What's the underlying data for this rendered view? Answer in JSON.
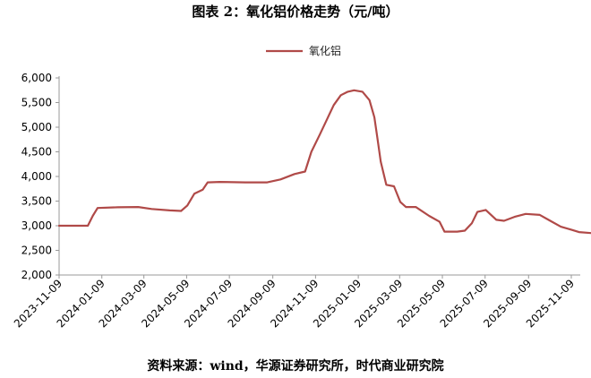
{
  "title": "图表 2：氧化铝价格走势（元/吨）",
  "source": "资料来源：wind，华源证券研究所，时代商业研究院",
  "chart_data": {
    "type": "line",
    "title": "图表 2：氧化铝价格走势（元/吨）",
    "xlabel": "",
    "ylabel": "",
    "ylim": [
      2000,
      6000
    ],
    "yticks": [
      "2,000",
      "2,500",
      "3,000",
      "3,500",
      "4,000",
      "4,500",
      "5,000",
      "5,500",
      "6,000"
    ],
    "xticks": [
      "2023-11-09",
      "2024-01-09",
      "2024-03-09",
      "2024-05-09",
      "2024-07-09",
      "2024-09-09",
      "2024-11-09",
      "2025-01-09",
      "2025-03-09",
      "2025-05-09",
      "2025-07-09",
      "2025-09-09",
      "2025-11-09"
    ],
    "xlim": [
      "2023-11-09",
      "2025-11-09"
    ],
    "grid": false,
    "legend_position": "top-center",
    "colors": {
      "series": "#b04a48",
      "axis": "#999999"
    },
    "series": [
      {
        "name": "氧化铝",
        "points": [
          [
            "2023-11-09",
            3000
          ],
          [
            "2023-12-20",
            3000
          ],
          [
            "2023-12-27",
            3200
          ],
          [
            "2024-01-03",
            3360
          ],
          [
            "2024-02-01",
            3375
          ],
          [
            "2024-03-01",
            3380
          ],
          [
            "2024-03-20",
            3340
          ],
          [
            "2024-04-15",
            3310
          ],
          [
            "2024-05-01",
            3300
          ],
          [
            "2024-05-10",
            3410
          ],
          [
            "2024-05-20",
            3650
          ],
          [
            "2024-06-01",
            3730
          ],
          [
            "2024-06-08",
            3880
          ],
          [
            "2024-06-25",
            3890
          ],
          [
            "2024-08-01",
            3880
          ],
          [
            "2024-09-01",
            3880
          ],
          [
            "2024-09-20",
            3940
          ],
          [
            "2024-10-10",
            4050
          ],
          [
            "2024-10-25",
            4100
          ],
          [
            "2024-11-03",
            4500
          ],
          [
            "2024-11-15",
            4850
          ],
          [
            "2024-11-25",
            5150
          ],
          [
            "2024-12-05",
            5450
          ],
          [
            "2024-12-15",
            5650
          ],
          [
            "2024-12-25",
            5720
          ],
          [
            "2025-01-03",
            5750
          ],
          [
            "2025-01-15",
            5720
          ],
          [
            "2025-01-25",
            5550
          ],
          [
            "2025-02-01",
            5200
          ],
          [
            "2025-02-05",
            4800
          ],
          [
            "2025-02-10",
            4300
          ],
          [
            "2025-02-18",
            3830
          ],
          [
            "2025-03-01",
            3800
          ],
          [
            "2025-03-10",
            3480
          ],
          [
            "2025-03-18",
            3380
          ],
          [
            "2025-04-01",
            3380
          ],
          [
            "2025-04-20",
            3200
          ],
          [
            "2025-05-05",
            3080
          ],
          [
            "2025-05-12",
            2880
          ],
          [
            "2025-05-30",
            2880
          ],
          [
            "2025-06-10",
            2900
          ],
          [
            "2025-06-20",
            3050
          ],
          [
            "2025-06-28",
            3280
          ],
          [
            "2025-07-10",
            3320
          ],
          [
            "2025-07-25",
            3120
          ],
          [
            "2025-08-05",
            3100
          ],
          [
            "2025-08-20",
            3180
          ],
          [
            "2025-09-05",
            3240
          ],
          [
            "2025-09-25",
            3220
          ],
          [
            "2025-10-10",
            3100
          ],
          [
            "2025-10-25",
            2980
          ],
          [
            "2025-11-09",
            2920
          ],
          [
            "2025-11-20",
            2870
          ],
          [
            "2025-12-09",
            2850
          ]
        ]
      }
    ]
  }
}
